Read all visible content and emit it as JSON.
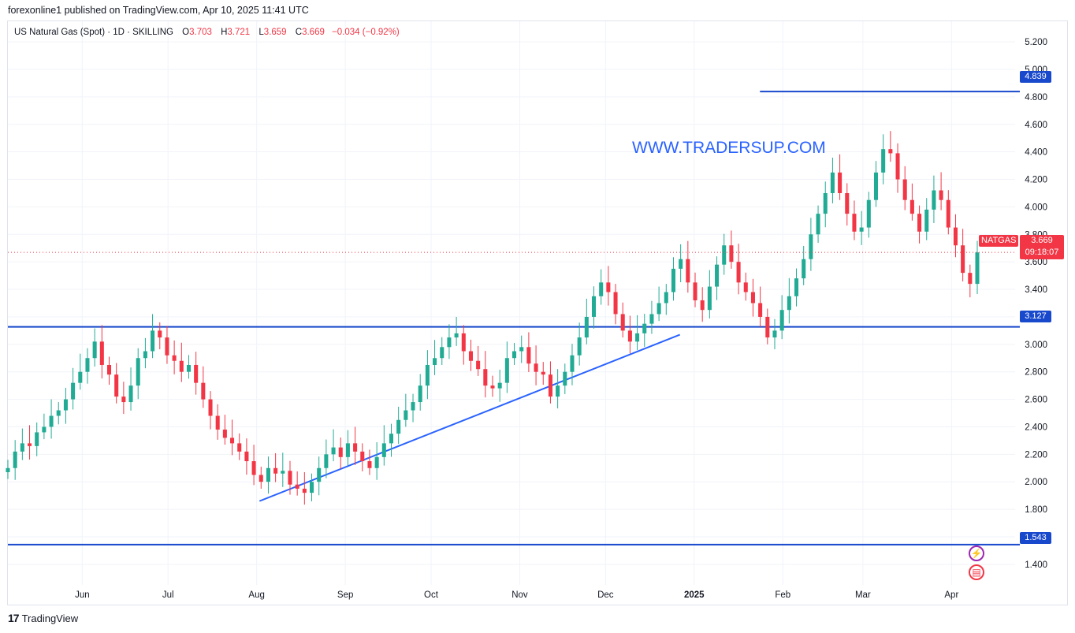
{
  "header": {
    "publish_line": "forexonline1 published on TradingView.com, Apr 10, 2025 11:41 UTC"
  },
  "legend": {
    "symbol": "US Natural Gas (Spot) · 1D · SKILLING",
    "o_label": "O",
    "o_value": "3.703",
    "h_label": "H",
    "h_value": "3.721",
    "l_label": "L",
    "l_value": "3.659",
    "c_label": "C",
    "c_value": "3.669",
    "change": "−0.034 (−0.92%)"
  },
  "watermark": "WWW.TRADERSUP.COM",
  "price_tags": {
    "level_high": "4.839",
    "level_mid": "3.127",
    "level_low": "1.543",
    "symbol": "NATGAS",
    "last_price": "3.669",
    "countdown": "09:18:07"
  },
  "footer": {
    "brand": "TradingView",
    "logo": "17"
  },
  "colors": {
    "up": "#22ab94",
    "down": "#f23645",
    "line": "#1848cc",
    "trend": "#2962ff",
    "grid": "#f0f3fa"
  },
  "chart_data": {
    "type": "candlestick",
    "title": "US Natural Gas (Spot) · 1D · SKILLING",
    "yaxis": {
      "ticks": [
        "1.400",
        "1.600",
        "1.800",
        "2.000",
        "2.200",
        "2.400",
        "2.600",
        "2.800",
        "3.000",
        "3.200",
        "3.400",
        "3.600",
        "3.800",
        "4.000",
        "4.200",
        "4.400",
        "4.600",
        "4.800",
        "5.000",
        "5.200"
      ],
      "range": [
        1.25,
        5.35
      ]
    },
    "xaxis": {
      "labels": [
        "Jun",
        "Jul",
        "Aug",
        "Sep",
        "Oct",
        "Nov",
        "Dec",
        "2025",
        "Feb",
        "Mar",
        "Apr"
      ],
      "start_date": "2024-05-06",
      "end_date": "2025-04-10"
    },
    "month_starts": [
      "2024-06-01",
      "2024-07-01",
      "2024-08-01",
      "2024-09-01",
      "2024-10-01",
      "2024-11-01",
      "2024-12-01",
      "2025-01-01",
      "2025-02-01",
      "2025-03-01",
      "2025-04-01"
    ],
    "horizontal_lines": [
      {
        "price": 4.839,
        "label": "4.839",
        "from_date": "2025-01-24"
      },
      {
        "price": 3.127,
        "label": "3.127"
      },
      {
        "price": 1.543,
        "label": "1.543"
      }
    ],
    "trendline": {
      "from": {
        "date": "2024-08-02",
        "price": 1.86
      },
      "to": {
        "date": "2024-12-27",
        "price": 3.07
      }
    },
    "last_price": 3.669,
    "closes": [
      2.1,
      2.22,
      2.28,
      2.26,
      2.36,
      2.4,
      2.48,
      2.52,
      2.6,
      2.72,
      2.8,
      2.9,
      3.02,
      2.85,
      2.78,
      2.62,
      2.58,
      2.7,
      2.9,
      2.95,
      3.1,
      3.05,
      2.92,
      2.88,
      2.8,
      2.85,
      2.72,
      2.6,
      2.48,
      2.38,
      2.32,
      2.28,
      2.22,
      2.15,
      2.05,
      2.0,
      2.1,
      2.06,
      2.08,
      1.98,
      1.95,
      1.92,
      2.0,
      2.1,
      2.2,
      2.25,
      2.18,
      2.28,
      2.22,
      2.15,
      2.1,
      2.18,
      2.28,
      2.35,
      2.45,
      2.52,
      2.58,
      2.7,
      2.85,
      2.9,
      2.98,
      3.05,
      3.08,
      2.95,
      2.88,
      2.82,
      2.7,
      2.68,
      2.72,
      2.9,
      2.95,
      2.98,
      2.86,
      2.8,
      2.78,
      2.62,
      2.7,
      2.8,
      2.92,
      3.05,
      3.2,
      3.35,
      3.45,
      3.38,
      3.22,
      3.1,
      3.02,
      3.08,
      3.15,
      3.22,
      3.3,
      3.38,
      3.55,
      3.62,
      3.45,
      3.32,
      3.25,
      3.42,
      3.58,
      3.72,
      3.6,
      3.45,
      3.38,
      3.3,
      3.2,
      3.05,
      3.1,
      3.25,
      3.35,
      3.48,
      3.62,
      3.8,
      3.95,
      4.1,
      4.25,
      4.1,
      3.95,
      3.82,
      3.85,
      4.05,
      4.25,
      4.42,
      4.39,
      4.2,
      4.05,
      3.95,
      3.82,
      3.98,
      4.12,
      4.05,
      3.85,
      3.72,
      3.52,
      3.44,
      3.669
    ]
  }
}
